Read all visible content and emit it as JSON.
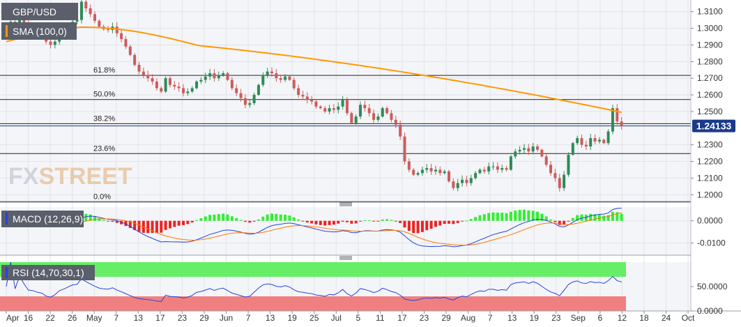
{
  "symbol": "GBP/USD",
  "watermark": {
    "part1": "FX",
    "part2": "STREET"
  },
  "current_price_label": "1.24133",
  "colors": {
    "up": "#2e8b57",
    "down": "#cd5c5c",
    "sma": "#ff9900",
    "macd_line": "#2244dd",
    "signal_line": "#ff7700",
    "macd_hist_up": "#33ee33",
    "macd_hist_down": "#ee2222",
    "rsi_line": "#2244dd",
    "rsi_overbought": "#66ee66",
    "rsi_oversold": "#f08080",
    "price_label_bg": "#1a3a8a"
  },
  "x_axis": {
    "labels": [
      "Apr",
      "16",
      "22",
      "26",
      "May",
      "7",
      "13",
      "17",
      "23",
      "29",
      "Jun",
      "7",
      "13",
      "19",
      "25",
      "Jul",
      "5",
      "11",
      "17",
      "23",
      "29",
      "Aug",
      "7",
      "13",
      "19",
      "23",
      "Sep",
      "6",
      "12",
      "18",
      "24",
      "Oct"
    ]
  },
  "chart_data": [
    {
      "type": "candlestick",
      "title": "GBP/USD",
      "legend": "SMA (100,0)",
      "y_ticks": [
        "1.3100",
        "1.3000",
        "1.2900",
        "1.2800",
        "1.2700",
        "1.2600",
        "1.2500",
        "1.2300",
        "1.2200",
        "1.2100",
        "1.2000"
      ],
      "ylim": [
        1.1955,
        1.317
      ],
      "fibonacci": [
        {
          "label": "61.8%",
          "value": 1.2717
        },
        {
          "label": "50.0%",
          "value": 1.2572
        },
        {
          "label": "38.2%",
          "value": 1.2427
        },
        {
          "label": "23.6%",
          "value": 1.2247
        },
        {
          "label": "0.0%",
          "value": 1.1958
        }
      ],
      "last_price": 1.24133,
      "closes": [
        1.3015,
        1.304,
        1.301,
        1.306,
        1.303,
        1.299,
        1.2985,
        1.297,
        1.296,
        1.292,
        1.29,
        1.292,
        1.296,
        1.298,
        1.301,
        1.304,
        1.305,
        1.316,
        1.312,
        1.3085,
        1.3045,
        1.301,
        1.2995,
        1.299,
        1.301,
        1.297,
        1.2935,
        1.289,
        1.284,
        1.278,
        1.274,
        1.272,
        1.27,
        1.268,
        1.264,
        1.262,
        1.27,
        1.266,
        1.265,
        1.264,
        1.261,
        1.262,
        1.264,
        1.268,
        1.269,
        1.271,
        1.273,
        1.27,
        1.272,
        1.273,
        1.269,
        1.264,
        1.261,
        1.258,
        1.254,
        1.255,
        1.26,
        1.266,
        1.272,
        1.274,
        1.273,
        1.27,
        1.269,
        1.271,
        1.269,
        1.264,
        1.26,
        1.259,
        1.257,
        1.256,
        1.253,
        1.252,
        1.25,
        1.252,
        1.251,
        1.253,
        1.257,
        1.249,
        1.243,
        1.247,
        1.254,
        1.252,
        1.249,
        1.245,
        1.247,
        1.252,
        1.249,
        1.245,
        1.242,
        1.235,
        1.22,
        1.215,
        1.212,
        1.213,
        1.215,
        1.216,
        1.214,
        1.215,
        1.213,
        1.214,
        1.208,
        1.204,
        1.207,
        1.209,
        1.207,
        1.21,
        1.213,
        1.215,
        1.214,
        1.217,
        1.217,
        1.215,
        1.216,
        1.215,
        1.223,
        1.226,
        1.227,
        1.228,
        1.226,
        1.229,
        1.227,
        1.223,
        1.218,
        1.213,
        1.21,
        1.204,
        1.212,
        1.224,
        1.231,
        1.234,
        1.23,
        1.229,
        1.234,
        1.232,
        1.233,
        1.231,
        1.238,
        1.252,
        1.244,
        1.2413
      ]
    },
    {
      "type": "line+bar",
      "title": "MACD (12,26,9)",
      "y_ticks": [
        "0.0000",
        "-0.0100"
      ],
      "ylim": [
        -0.0155,
        0.0062
      ],
      "series": [
        {
          "name": "MACD",
          "role": "macd"
        },
        {
          "name": "Signal",
          "role": "signal"
        },
        {
          "name": "Histogram",
          "role": "histogram"
        }
      ]
    },
    {
      "type": "line",
      "title": "RSI (14,70,30,1)",
      "y_ticks": [
        "50.0000",
        "0.0000"
      ],
      "ylim": [
        0,
        100
      ],
      "bands": [
        {
          "from": 70,
          "to": 100,
          "role": "overbought"
        },
        {
          "from": 0,
          "to": 30,
          "role": "oversold"
        }
      ]
    }
  ]
}
